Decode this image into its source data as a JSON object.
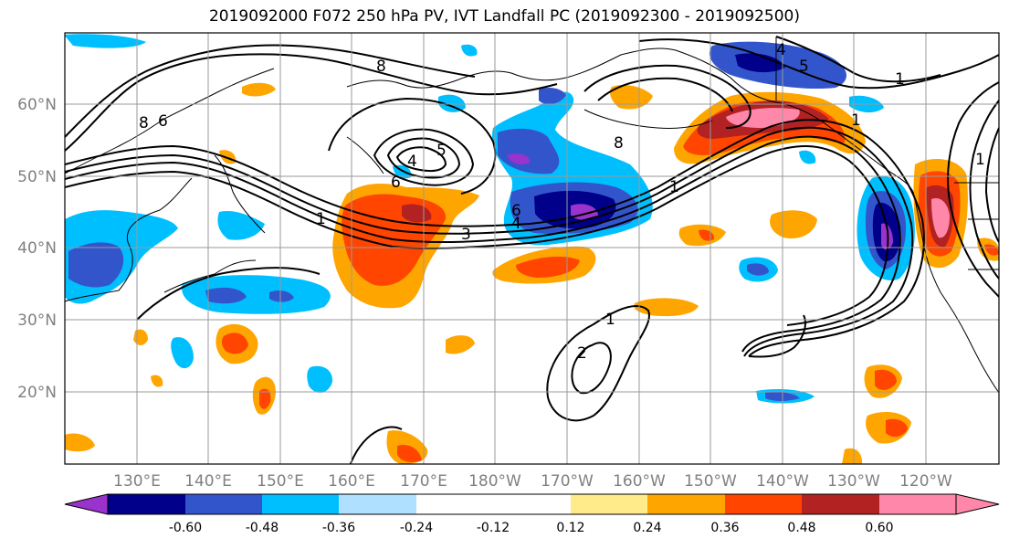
{
  "title": "2019092000 F072 250 hPa PV, IVT Landfall PC (2019092300 - 2019092500)",
  "lat_labels": [
    "60°N",
    "50°N",
    "40°N",
    "30°N",
    "20°N"
  ],
  "lon_labels": [
    "130°E",
    "140°E",
    "150°E",
    "160°E",
    "170°E",
    "180°W",
    "170°W",
    "160°W",
    "150°W",
    "140°W",
    "130°W",
    "120°W"
  ],
  "colorbar": {
    "colors": [
      "#9933cc",
      "#00008b",
      "#3355cc",
      "#00bfff",
      "#b0e0ff",
      "#ffffff",
      "#ffeb8a",
      "#ffa500",
      "#ff4500",
      "#b22222",
      "#ff88aa"
    ],
    "tick_labels": [
      "-0.60",
      "-0.48",
      "-0.36",
      "-0.24",
      "-0.12",
      "0.12",
      "0.24",
      "0.36",
      "0.48",
      "0.60"
    ]
  },
  "pv_labels": [
    "8",
    "8",
    "6",
    "4",
    "5",
    "6",
    "1",
    "3",
    "6",
    "4",
    "8",
    "1",
    "1",
    "4",
    "5",
    "1",
    "1",
    "2",
    "1"
  ]
}
